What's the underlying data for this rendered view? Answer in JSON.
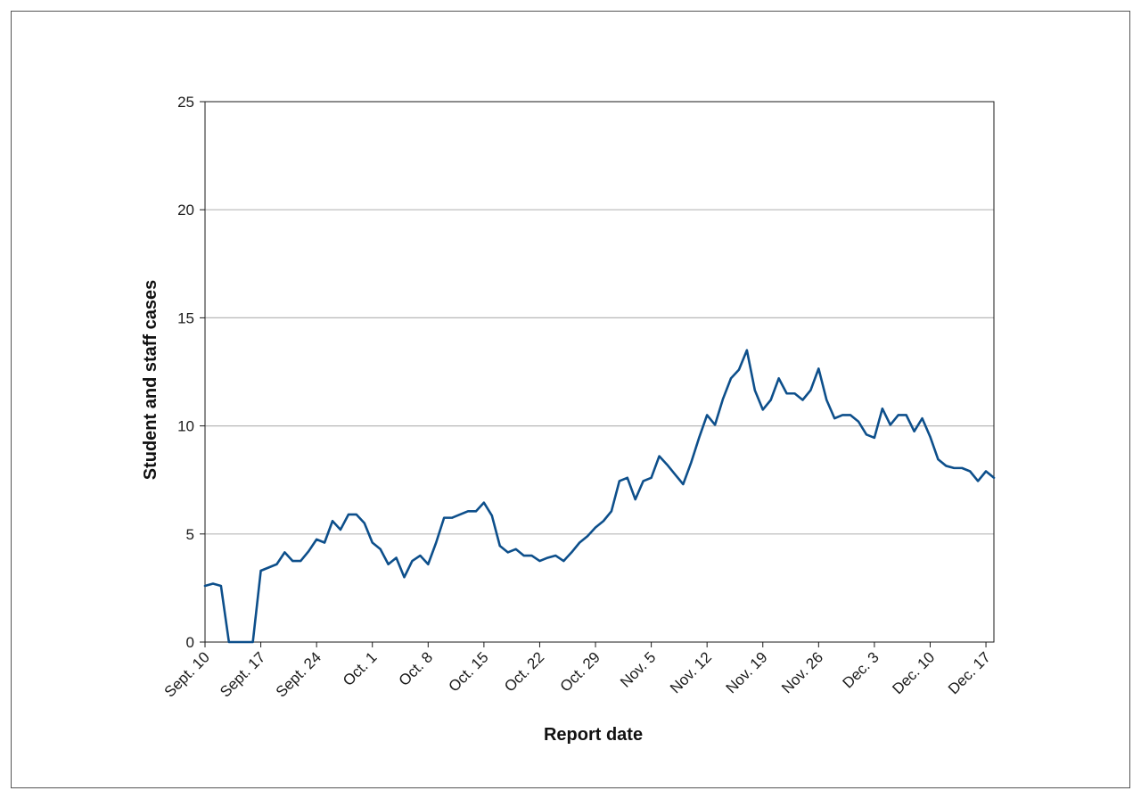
{
  "chart_data": {
    "type": "line",
    "title": "",
    "xlabel": "Report date",
    "ylabel": "Student and staff cases",
    "ylim": [
      0,
      25
    ],
    "yticks": [
      0,
      5,
      10,
      15,
      20,
      25
    ],
    "grid": "horizontal",
    "line_color": "#0d4f8b",
    "grid_color": "#b8b8b8",
    "x_tick_labels": [
      "Sept. 10",
      "Sept. 17",
      "Sept. 24",
      "Oct. 1",
      "Oct. 8",
      "Oct. 15",
      "Oct. 22",
      "Oct. 29",
      "Nov. 5",
      "Nov. 12",
      "Nov. 19",
      "Nov. 26",
      "Dec. 3",
      "Dec. 10",
      "Dec. 17"
    ],
    "x_range": [
      "Sept. 10",
      "Dec. 18"
    ],
    "series": [
      {
        "values": [
          2.6,
          2.7,
          2.6,
          0,
          0,
          0,
          0,
          3.3,
          3.45,
          3.6,
          4.15,
          3.75,
          3.75,
          4.2,
          4.75,
          4.6,
          5.6,
          5.2,
          5.9,
          5.9,
          5.5,
          4.6,
          4.3,
          3.6,
          3.9,
          3.0,
          3.75,
          4.0,
          3.6,
          4.6,
          5.75,
          5.75,
          5.9,
          6.05,
          6.05,
          6.45,
          5.85,
          4.45,
          4.15,
          4.3,
          4.0,
          4.0,
          3.75,
          3.9,
          4.0,
          3.75,
          4.15,
          4.6,
          4.9,
          5.3,
          5.6,
          6.05,
          7.45,
          7.6,
          6.6,
          7.45,
          7.6,
          8.6,
          8.2,
          7.75,
          7.3,
          8.3,
          9.45,
          10.5,
          10.05,
          11.25,
          12.2,
          12.6,
          13.5,
          11.65,
          10.75,
          11.2,
          12.2,
          11.5,
          11.5,
          11.2,
          11.65,
          12.65,
          11.2,
          10.35,
          10.5,
          10.5,
          10.2,
          9.6,
          9.45,
          10.8,
          10.05,
          10.5,
          10.5,
          9.75,
          10.35,
          9.5,
          8.45,
          8.15,
          8.05,
          8.05,
          7.9,
          7.45,
          7.9,
          7.6
        ]
      }
    ]
  }
}
